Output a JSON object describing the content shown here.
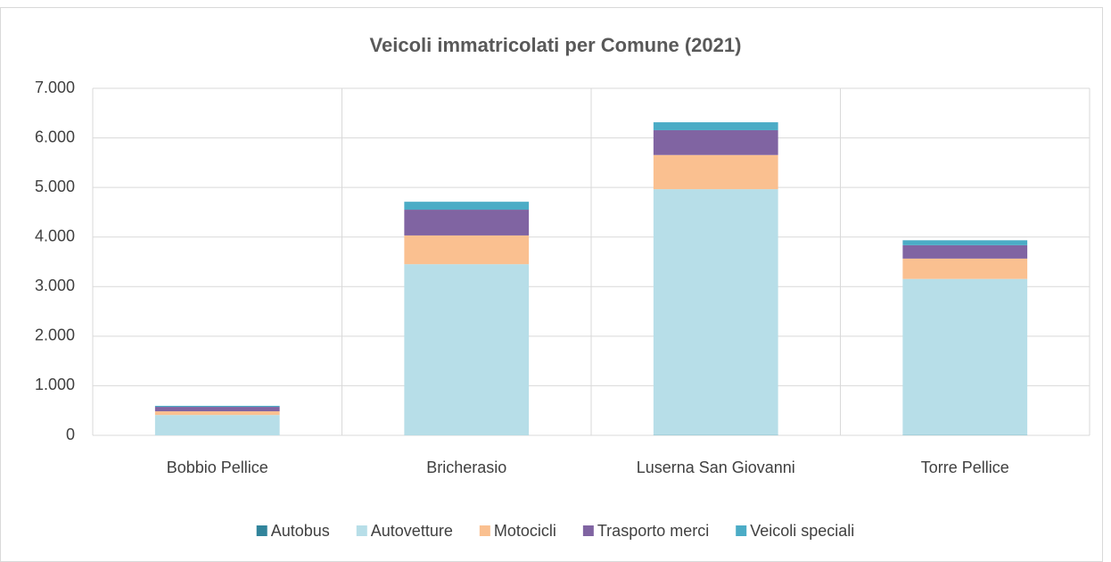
{
  "chart_data": {
    "type": "stacked_bar",
    "title": "Veicoli immatricolati per Comune (2021)",
    "categories": [
      "Bobbio Pellice",
      "Bricherasio",
      "Luserna San Giovanni",
      "Torre Pellice"
    ],
    "series": [
      {
        "name": "Autobus",
        "color": "#31849b",
        "values": [
          0,
          2,
          5,
          5
        ]
      },
      {
        "name": "Autovetture",
        "color": "#b7dee8",
        "values": [
          410,
          3450,
          4960,
          3150
        ]
      },
      {
        "name": "Motocicli",
        "color": "#fac090",
        "values": [
          75,
          580,
          690,
          410
        ]
      },
      {
        "name": "Trasporto merci",
        "color": "#8064a2",
        "values": [
          90,
          520,
          500,
          270
        ]
      },
      {
        "name": "Veicoli speciali",
        "color": "#4bacc6",
        "values": [
          20,
          160,
          160,
          100
        ]
      }
    ],
    "ylim": [
      0,
      7000
    ],
    "yticks": [
      0,
      {
        "value": 1000,
        "label": "1.000"
      },
      {
        "value": 2000,
        "label": "2.000"
      },
      {
        "value": 3000,
        "label": "3.000"
      },
      {
        "value": 4000,
        "label": "4.000"
      },
      {
        "value": 5000,
        "label": "5.000"
      },
      {
        "value": 6000,
        "label": "6.000"
      },
      {
        "value": 7000,
        "label": "7.000"
      }
    ],
    "grid": true,
    "legend": "bottom"
  }
}
